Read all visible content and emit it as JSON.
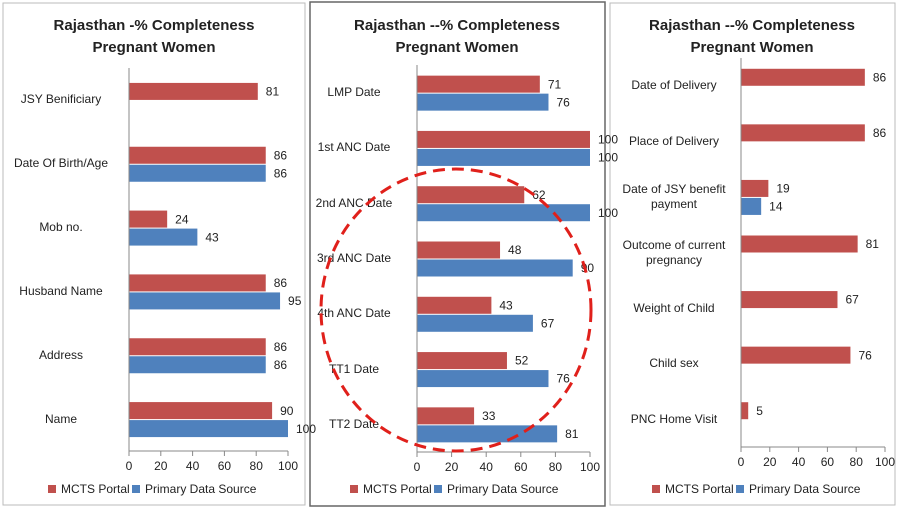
{
  "chart_data": [
    {
      "type": "bar",
      "orientation": "horizontal",
      "title": "Rajasthan -% Completeness",
      "subtitle": "Pregnant Women",
      "categories": [
        "JSY Benificiary",
        "Date Of Birth/Age",
        "Mob no.",
        "Husband Name",
        "Address",
        "Name"
      ],
      "series": [
        {
          "name": "MCTS Portal",
          "color": "#c0504d",
          "values": [
            81,
            86,
            24,
            86,
            86,
            90
          ]
        },
        {
          "name": "Primary Data Source",
          "color": "#4f81bd",
          "values": [
            null,
            86,
            43,
            95,
            86,
            100
          ]
        }
      ],
      "xlim": [
        0,
        100
      ],
      "xticks": [
        0,
        20,
        40,
        60,
        80,
        100
      ],
      "legend": "bottom"
    },
    {
      "type": "bar",
      "orientation": "horizontal",
      "title": "Rajasthan --% Completeness",
      "subtitle": "Pregnant Women",
      "categories": [
        "LMP Date",
        "1st ANC Date",
        "2nd ANC Date",
        "3rd ANC Date",
        "4th ANC Date",
        "TT1 Date",
        "TT2 Date"
      ],
      "series": [
        {
          "name": "MCTS Portal",
          "color": "#c0504d",
          "values": [
            71,
            100,
            62,
            48,
            43,
            52,
            33
          ]
        },
        {
          "name": "Primary Data Source",
          "color": "#4f81bd",
          "values": [
            76,
            100,
            100,
            90,
            67,
            76,
            81
          ]
        }
      ],
      "xlim": [
        0,
        100
      ],
      "xticks": [
        0,
        20,
        40,
        60,
        80,
        100
      ],
      "legend": "bottom"
    },
    {
      "type": "bar",
      "orientation": "horizontal",
      "title": "Rajasthan --% Completeness",
      "subtitle": "Pregnant Women",
      "categories": [
        "Date of Delivery",
        "Place of Delivery",
        "Date of JSY benefit payment",
        "Outcome of current pregnancy",
        "Weight of Child",
        "Child sex",
        "PNC Home Visit"
      ],
      "series": [
        {
          "name": "MCTS Portal",
          "color": "#c0504d",
          "values": [
            86,
            86,
            19,
            81,
            67,
            76,
            5
          ]
        },
        {
          "name": "Primary Data Source",
          "color": "#4f81bd",
          "values": [
            null,
            null,
            14,
            null,
            null,
            null,
            null
          ]
        }
      ],
      "xlim": [
        0,
        100
      ],
      "xticks": [
        0,
        20,
        40,
        60,
        80,
        100
      ],
      "legend": "bottom"
    }
  ]
}
